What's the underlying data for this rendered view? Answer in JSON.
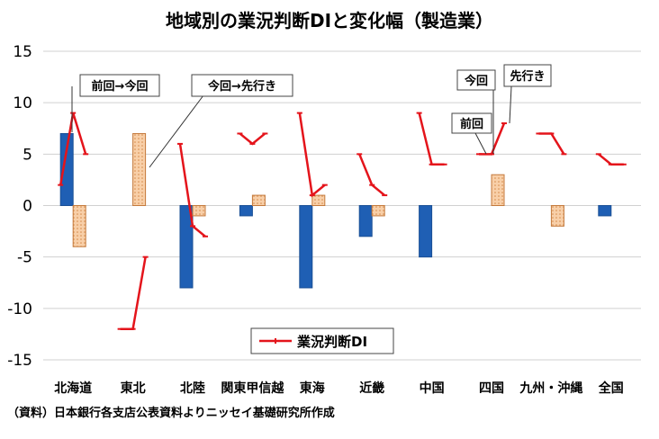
{
  "chart_data": {
    "type": "bar",
    "title": "地域別の業況判断DIと変化幅（製造業）",
    "categories": [
      "北海道",
      "東北",
      "北陸",
      "関東甲信越",
      "東海",
      "近畿",
      "中国",
      "四国",
      "九州・沖縄",
      "全国"
    ],
    "series": [
      {
        "name": "前回→今回",
        "values": [
          7,
          0,
          -8,
          -1,
          -8,
          -3,
          -5,
          0,
          0,
          -1
        ],
        "color": "#1f5fb4"
      },
      {
        "name": "今回→先行き",
        "values": [
          -4,
          7,
          -1,
          1,
          1,
          -1,
          0,
          3,
          -2,
          0
        ],
        "color": "#f8cfa8"
      }
    ],
    "line_series": {
      "name": "業況判断DI",
      "color": "#e4141b",
      "values": [
        [
          2,
          9,
          5
        ],
        [
          -12,
          -12,
          -5
        ],
        [
          6,
          -2,
          -3
        ],
        [
          7,
          6,
          7
        ],
        [
          9,
          1,
          2
        ],
        [
          5,
          2,
          1
        ],
        [
          9,
          4,
          4
        ],
        [
          5,
          5,
          8
        ],
        [
          7,
          7,
          5
        ],
        [
          5,
          4,
          4
        ]
      ]
    },
    "ylim": [
      -15,
      15
    ],
    "yticks": [
      15,
      10,
      5,
      0,
      -5,
      -10,
      -15
    ],
    "grid": true,
    "legend": "bottom-center",
    "annotations": {
      "prev_to_now": "前回→今回",
      "now_to_future": "今回→先行き",
      "now": "今回",
      "future": "先行き",
      "prev": "前回"
    }
  },
  "source_note": "（資料）日本銀行各支店公表資料よりニッセイ基礎研究所作成"
}
